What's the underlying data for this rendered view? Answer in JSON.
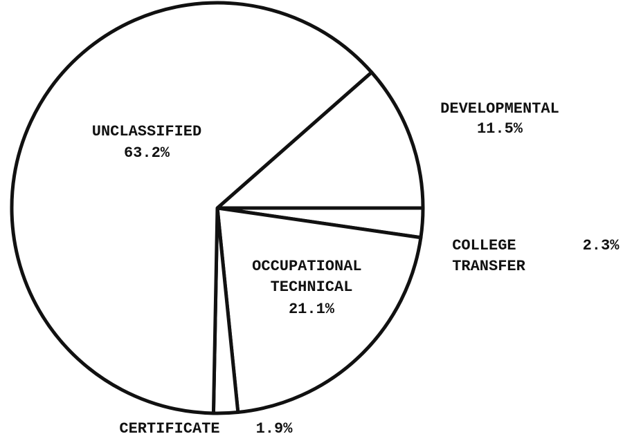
{
  "chart_data": {
    "type": "pie",
    "categories": [
      "DEVELOPMENTAL",
      "COLLEGE TRANSFER",
      "OCCUPATIONAL TECHNICAL",
      "CERTIFICATE",
      "UNCLASSIFIED"
    ],
    "values": [
      11.5,
      2.3,
      21.1,
      1.9,
      63.2
    ],
    "value_labels": [
      "11.5%",
      "2.3%",
      "21.1%",
      "1.9%",
      "63.2%"
    ],
    "color": "#ffffff"
  }
}
